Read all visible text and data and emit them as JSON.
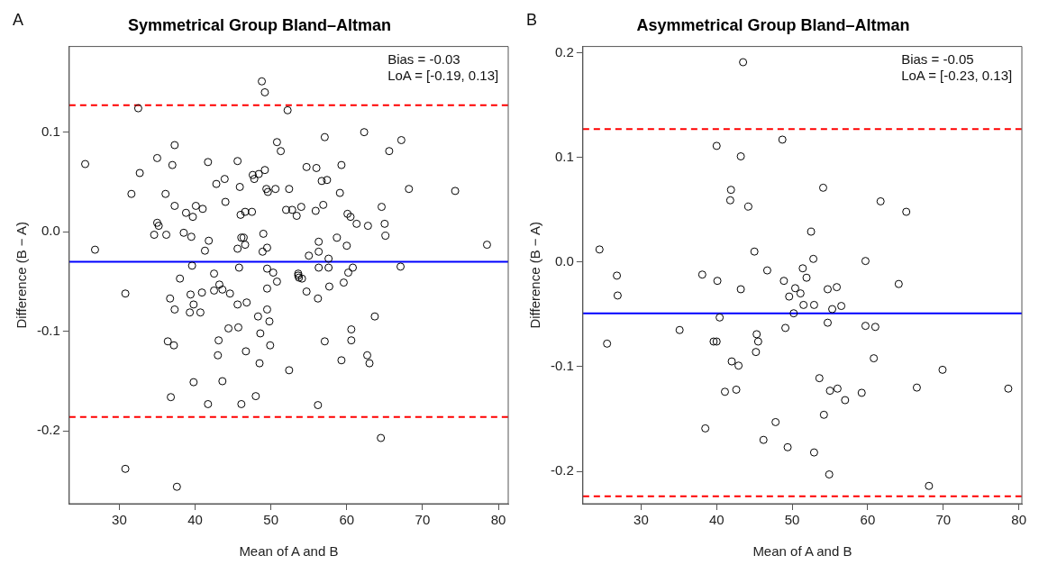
{
  "chart_data": [
    {
      "type": "scatter",
      "title": "Symmetrical Group Bland–Altman",
      "xlabel": "Mean of A and B",
      "ylabel": "Difference (B − A)",
      "annotations": [
        "A",
        "Bias = -0.03",
        "LoA = [-0.19, 0.13]"
      ],
      "x": [
        48.8,
        49.2,
        32.5,
        52.2,
        62.3,
        57.1,
        67.2,
        50.8,
        37.3,
        51.3,
        65.6,
        35.0,
        25.5,
        41.7,
        45.6,
        37.0,
        54.7,
        56.0,
        59.3,
        32.7,
        47.6,
        48.4,
        49.2,
        47.8,
        43.9,
        42.8,
        56.7,
        57.4,
        45.9,
        49.4,
        49.6,
        50.6,
        52.4,
        31.6,
        36.1,
        59.1,
        68.2,
        74.3,
        44.0,
        37.3,
        40.1,
        41.0,
        38.8,
        39.7,
        46.0,
        46.6,
        47.5,
        52.0,
        52.8,
        53.4,
        54.0,
        55.9,
        56.9,
        60.1,
        60.5,
        61.3,
        62.8,
        64.6,
        65.0,
        65.1,
        35.0,
        35.2,
        34.6,
        36.2,
        38.5,
        39.5,
        41.8,
        41.3,
        26.8,
        49.0,
        46.1,
        46.4,
        46.6,
        45.6,
        48.9,
        49.5,
        56.3,
        56.3,
        58.7,
        60.0,
        55.0,
        57.6,
        78.5,
        39.6,
        45.8,
        49.5,
        50.3,
        50.8,
        53.6,
        53.6,
        53.7,
        54.1,
        56.3,
        57.6,
        60.2,
        60.8,
        67.1,
        38.0,
        42.5,
        43.2,
        43.6,
        42.5,
        44.6,
        40.9,
        39.4,
        30.8,
        36.7,
        39.8,
        37.3,
        39.3,
        40.7,
        45.6,
        46.8,
        49.5,
        49.5,
        48.3,
        49.8,
        54.7,
        56.2,
        57.7,
        59.6,
        63.7,
        44.4,
        45.7,
        48.6,
        60.6,
        36.4,
        37.2,
        43.1,
        57.1,
        60.6,
        49.9,
        46.7,
        43.0,
        48.5,
        59.3,
        62.7,
        63.0,
        52.4,
        39.8,
        43.6,
        36.8,
        48.0,
        41.7,
        46.1,
        56.2,
        64.5,
        30.8,
        37.6
      ],
      "values": [
        0.151,
        0.14,
        0.124,
        0.122,
        0.1,
        0.095,
        0.092,
        0.09,
        0.087,
        0.081,
        0.081,
        0.074,
        0.068,
        0.07,
        0.071,
        0.067,
        0.065,
        0.064,
        0.067,
        0.059,
        0.057,
        0.058,
        0.062,
        0.053,
        0.053,
        0.048,
        0.051,
        0.052,
        0.045,
        0.043,
        0.04,
        0.043,
        0.043,
        0.038,
        0.038,
        0.039,
        0.043,
        0.041,
        0.03,
        0.026,
        0.026,
        0.023,
        0.019,
        0.015,
        0.017,
        0.02,
        0.02,
        0.022,
        0.022,
        0.016,
        0.025,
        0.021,
        0.027,
        0.018,
        0.015,
        0.008,
        0.006,
        0.025,
        0.008,
        -0.004,
        0.009,
        0.006,
        -0.003,
        -0.003,
        -0.001,
        -0.005,
        -0.009,
        -0.019,
        -0.018,
        -0.002,
        -0.006,
        -0.006,
        -0.013,
        -0.017,
        -0.02,
        -0.016,
        -0.01,
        -0.02,
        -0.006,
        -0.014,
        -0.024,
        -0.027,
        -0.013,
        -0.034,
        -0.036,
        -0.037,
        -0.041,
        -0.05,
        -0.042,
        -0.044,
        -0.046,
        -0.047,
        -0.036,
        -0.036,
        -0.041,
        -0.036,
        -0.035,
        -0.047,
        -0.042,
        -0.053,
        -0.058,
        -0.059,
        -0.062,
        -0.061,
        -0.063,
        -0.062,
        -0.067,
        -0.073,
        -0.078,
        -0.081,
        -0.081,
        -0.073,
        -0.071,
        -0.057,
        -0.078,
        -0.085,
        -0.09,
        -0.06,
        -0.067,
        -0.055,
        -0.051,
        -0.085,
        -0.097,
        -0.096,
        -0.102,
        -0.098,
        -0.11,
        -0.114,
        -0.109,
        -0.11,
        -0.109,
        -0.114,
        -0.12,
        -0.124,
        -0.132,
        -0.129,
        -0.124,
        -0.132,
        -0.139,
        -0.151,
        -0.15,
        -0.166,
        -0.165,
        -0.173,
        -0.173,
        -0.174,
        -0.207,
        -0.238,
        -0.256
      ],
      "color": "#000000",
      "marker": "circle",
      "xlim": [
        23.4,
        81.3
      ],
      "xticks": [
        30,
        40,
        50,
        60,
        70,
        80
      ],
      "ylim": [
        -0.273,
        0.186
      ],
      "yticks": [
        -0.2,
        -0.1,
        {
          "value": 0,
          "label": "0.0"
        },
        0.1
      ],
      "ref_lines": [
        {
          "axis": "y",
          "value": -0.03,
          "color": "#0000ff",
          "line_style": "solid"
        },
        {
          "axis": "y",
          "value": 0.127,
          "color": "#ff0000",
          "line_style": "dashed"
        },
        {
          "axis": "y",
          "value": -0.186,
          "color": "#ff0000",
          "line_style": "dashed"
        }
      ],
      "grid": false,
      "legend": false
    },
    {
      "type": "scatter",
      "title": "Asymmetrical Group Bland–Altman",
      "xlabel": "Mean of A and B",
      "ylabel": "Difference (B − A)",
      "annotations": [
        "B",
        "Bias = -0.05",
        "LoA = [-0.23, 0.13]"
      ],
      "x": [
        43.5,
        40.0,
        43.2,
        48.7,
        41.9,
        41.8,
        44.2,
        54.1,
        61.7,
        65.1,
        52.5,
        24.5,
        45.0,
        52.8,
        59.7,
        26.8,
        26.9,
        25.5,
        35.1,
        38.1,
        40.1,
        40.4,
        39.6,
        40.0,
        43.2,
        46.7,
        48.9,
        51.4,
        51.9,
        50.4,
        49.6,
        51.1,
        51.5,
        52.9,
        50.2,
        54.7,
        55.9,
        55.3,
        56.5,
        54.7,
        59.7,
        61.0,
        64.1,
        49.1,
        45.3,
        45.5,
        45.2,
        42.0,
        42.9,
        60.8,
        69.9,
        53.6,
        41.1,
        42.6,
        55.0,
        56.0,
        59.2,
        57.0,
        66.5,
        78.6,
        54.2,
        47.8,
        38.5,
        46.2,
        49.4,
        52.9,
        54.9,
        68.1
      ],
      "values": [
        0.191,
        0.111,
        0.101,
        0.117,
        0.069,
        0.059,
        0.053,
        0.071,
        0.058,
        0.048,
        0.029,
        0.012,
        0.01,
        0.003,
        0.001,
        -0.013,
        -0.032,
        -0.078,
        -0.065,
        -0.012,
        -0.018,
        -0.053,
        -0.076,
        -0.076,
        -0.026,
        -0.008,
        -0.018,
        -0.006,
        -0.015,
        -0.025,
        -0.033,
        -0.03,
        -0.041,
        -0.041,
        -0.049,
        -0.026,
        -0.024,
        -0.045,
        -0.042,
        -0.058,
        -0.061,
        -0.062,
        -0.021,
        -0.063,
        -0.069,
        -0.076,
        -0.086,
        -0.095,
        -0.099,
        -0.092,
        -0.103,
        -0.111,
        -0.124,
        -0.122,
        -0.123,
        -0.121,
        -0.125,
        -0.132,
        -0.12,
        -0.121,
        -0.146,
        -0.153,
        -0.159,
        -0.17,
        -0.177,
        -0.182,
        -0.203,
        -0.214
      ],
      "color": "#000000",
      "marker": "circle",
      "xlim": [
        22.3,
        80.4
      ],
      "xticks": [
        30,
        40,
        50,
        60,
        70,
        80
      ],
      "ylim": [
        -0.231,
        0.206
      ],
      "yticks": [
        -0.2,
        -0.1,
        {
          "value": 0,
          "label": "0.0"
        },
        0.1,
        0.2
      ],
      "ref_lines": [
        {
          "axis": "y",
          "value": -0.049,
          "color": "#0000ff",
          "line_style": "solid"
        },
        {
          "axis": "y",
          "value": 0.127,
          "color": "#ff0000",
          "line_style": "dashed"
        },
        {
          "axis": "y",
          "value": -0.224,
          "color": "#ff0000",
          "line_style": "dashed"
        }
      ],
      "grid": false,
      "legend": false
    }
  ]
}
